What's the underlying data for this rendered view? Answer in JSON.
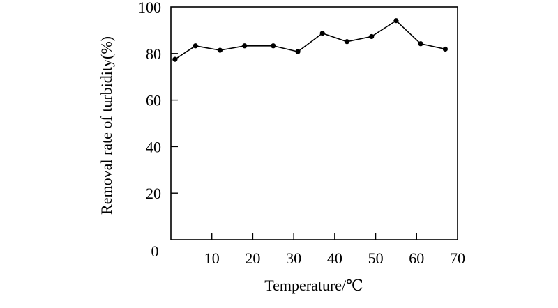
{
  "chart_data": {
    "type": "line",
    "title": "",
    "xlabel": "Temperature/℃",
    "ylabel": "Removal rate of turbidity(%)",
    "xlim": [
      0,
      70
    ],
    "ylim": [
      0,
      100
    ],
    "xticks": [
      10,
      20,
      30,
      40,
      50,
      60,
      70
    ],
    "yticks": [
      20,
      40,
      60,
      80,
      100
    ],
    "origin_label": "0",
    "grid": false,
    "marker": "filled-circle",
    "line_color": "#000000",
    "x": [
      1,
      6,
      12,
      18,
      25,
      31,
      37,
      43,
      49,
      55,
      61,
      67
    ],
    "y": [
      77.5,
      83.3,
      81.4,
      83.3,
      83.3,
      80.8,
      88.7,
      85.1,
      87.3,
      94.1,
      84.2,
      81.9
    ]
  }
}
